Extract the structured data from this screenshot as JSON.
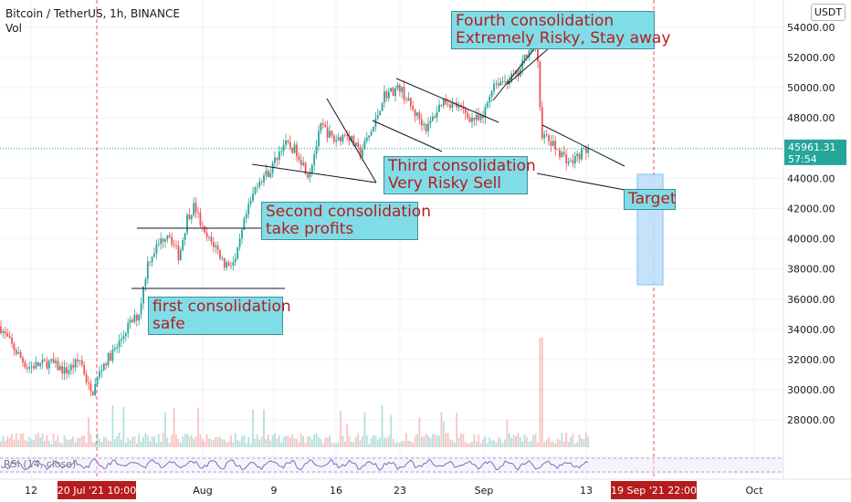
{
  "header": {
    "symbol_line": "Bitcoin / TetherUS, 1h, BINANCE",
    "vol_label": "Vol",
    "currency": "USDT"
  },
  "rsi_label": "RSI (14, close)",
  "chart_data": {
    "type": "candlestick",
    "title": "Bitcoin / TetherUS, 1h, BINANCE",
    "y_axis": {
      "ticks": [
        28000,
        30000,
        32000,
        34000,
        36000,
        38000,
        40000,
        42000,
        44000,
        46000,
        48000,
        50000,
        52000,
        54000
      ],
      "tick_labels": [
        "28000.00",
        "30000.00",
        "32000.00",
        "34000.00",
        "36000.00",
        "38000.00",
        "40000.00",
        "42000.00",
        "44000.00",
        "46000.00",
        "48000.00",
        "50000.00",
        "52000.00",
        "54000.00"
      ],
      "range": [
        26200,
        55800
      ]
    },
    "x_axis": {
      "tick_labels": [
        "12",
        "Aug",
        "9",
        "16",
        "23",
        "Sep",
        "13",
        "Oct"
      ],
      "highlight_labels": [
        "20 Jul '21   10:00",
        "19 Sep '21   22:00"
      ]
    },
    "current_price": {
      "label": "45961.31",
      "countdown": "57:54",
      "value": 45961.31
    },
    "price_path": [
      {
        "t": 0,
        "p": 34200
      },
      {
        "t": 12,
        "p": 33000
      },
      {
        "t": 30,
        "p": 31500
      },
      {
        "t": 55,
        "p": 31800
      },
      {
        "t": 72,
        "p": 31200
      },
      {
        "t": 88,
        "p": 32000
      },
      {
        "t": 100,
        "p": 29600
      },
      {
        "t": 112,
        "p": 31600
      },
      {
        "t": 128,
        "p": 32800
      },
      {
        "t": 140,
        "p": 34200
      },
      {
        "t": 152,
        "p": 35000
      },
      {
        "t": 162,
        "p": 38500
      },
      {
        "t": 172,
        "p": 39500
      },
      {
        "t": 184,
        "p": 40500
      },
      {
        "t": 196,
        "p": 38800
      },
      {
        "t": 205,
        "p": 41400
      },
      {
        "t": 213,
        "p": 42200
      },
      {
        "t": 224,
        "p": 40200
      },
      {
        "t": 236,
        "p": 39500
      },
      {
        "t": 246,
        "p": 38300
      },
      {
        "t": 258,
        "p": 38500
      },
      {
        "t": 268,
        "p": 41200
      },
      {
        "t": 282,
        "p": 43800
      },
      {
        "t": 296,
        "p": 44500
      },
      {
        "t": 310,
        "p": 46300
      },
      {
        "t": 325,
        "p": 45800
      },
      {
        "t": 338,
        "p": 44200
      },
      {
        "t": 352,
        "p": 47500
      },
      {
        "t": 366,
        "p": 46500
      },
      {
        "t": 380,
        "p": 47000
      },
      {
        "t": 394,
        "p": 45600
      },
      {
        "t": 410,
        "p": 47500
      },
      {
        "t": 420,
        "p": 49500
      },
      {
        "t": 438,
        "p": 50000
      },
      {
        "t": 452,
        "p": 48500
      },
      {
        "t": 468,
        "p": 47300
      },
      {
        "t": 485,
        "p": 49200
      },
      {
        "t": 500,
        "p": 48800
      },
      {
        "t": 515,
        "p": 48000
      },
      {
        "t": 528,
        "p": 47800
      },
      {
        "t": 540,
        "p": 50300
      },
      {
        "t": 555,
        "p": 50500
      },
      {
        "t": 568,
        "p": 50900
      },
      {
        "t": 580,
        "p": 52800
      },
      {
        "t": 588,
        "p": 52600
      },
      {
        "t": 593,
        "p": 47000
      },
      {
        "t": 600,
        "p": 46500
      },
      {
        "t": 612,
        "p": 45800
      },
      {
        "t": 625,
        "p": 45000
      },
      {
        "t": 638,
        "p": 45800
      },
      {
        "t": 645,
        "p": 45961
      }
    ],
    "annotations": [
      {
        "text": "first consolidation\nsafe"
      },
      {
        "text": "Second consolidation\ntake profits"
      },
      {
        "text": "Third consolidation\nVery Risky Sell"
      },
      {
        "text": "Fourth consolidation\nExtremely Risky, Stay away"
      },
      {
        "text": "Target"
      }
    ],
    "colors": {
      "up": "#26a69a",
      "down": "#ef5350",
      "rsi": "#7e57c2",
      "date_marker": "#ef5350",
      "target_box": "#bbdefb"
    }
  }
}
